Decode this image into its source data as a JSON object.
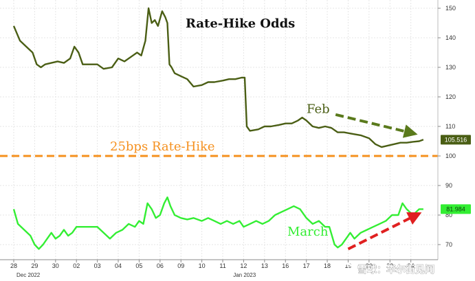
{
  "chart_data": {
    "type": "line",
    "title": "Rate-Hike Odds",
    "y_ticks": [
      70,
      80,
      90,
      100,
      110,
      120,
      130,
      140,
      150
    ],
    "ylim": [
      63,
      152
    ],
    "x_tick_labels": [
      "28",
      "29",
      "30",
      "02",
      "03",
      "04",
      "05",
      "06",
      "09",
      "10",
      "11",
      "12",
      "13",
      "16",
      "17",
      "18",
      "19",
      "20",
      "23",
      "24"
    ],
    "x_group_labels": [
      "Dec 2022",
      "Jan 2023"
    ],
    "xlim": [
      0,
      19.8
    ],
    "grid": true,
    "series": [
      {
        "name": "Feb",
        "color": "#4a5e14",
        "last_value": "105.516",
        "points": [
          [
            0,
            144
          ],
          [
            0.3,
            139
          ],
          [
            0.6,
            137
          ],
          [
            0.9,
            135
          ],
          [
            1.1,
            131
          ],
          [
            1.3,
            130
          ],
          [
            1.5,
            131
          ],
          [
            1.8,
            131.5
          ],
          [
            2.1,
            132
          ],
          [
            2.4,
            131.5
          ],
          [
            2.7,
            133
          ],
          [
            2.9,
            137
          ],
          [
            3.1,
            135
          ],
          [
            3.3,
            131
          ],
          [
            3.6,
            131
          ],
          [
            4.0,
            131
          ],
          [
            4.3,
            129.5
          ],
          [
            4.7,
            130
          ],
          [
            5.0,
            133
          ],
          [
            5.3,
            132
          ],
          [
            5.7,
            134
          ],
          [
            5.9,
            135
          ],
          [
            6.1,
            134
          ],
          [
            6.3,
            139
          ],
          [
            6.45,
            150
          ],
          [
            6.6,
            145
          ],
          [
            6.75,
            146
          ],
          [
            6.9,
            144
          ],
          [
            7.1,
            149
          ],
          [
            7.25,
            147
          ],
          [
            7.35,
            145
          ],
          [
            7.45,
            131
          ],
          [
            7.55,
            130
          ],
          [
            7.7,
            128
          ],
          [
            8.0,
            127
          ],
          [
            8.3,
            126
          ],
          [
            8.6,
            123.5
          ],
          [
            9.0,
            124
          ],
          [
            9.3,
            125
          ],
          [
            9.6,
            125
          ],
          [
            10.0,
            125.5
          ],
          [
            10.3,
            126
          ],
          [
            10.6,
            126
          ],
          [
            10.9,
            126.5
          ],
          [
            11.05,
            126.5
          ],
          [
            11.15,
            110
          ],
          [
            11.3,
            108.5
          ],
          [
            11.7,
            109
          ],
          [
            12.0,
            110
          ],
          [
            12.3,
            110
          ],
          [
            12.7,
            110.5
          ],
          [
            13.0,
            111
          ],
          [
            13.3,
            111
          ],
          [
            13.6,
            112
          ],
          [
            13.8,
            113
          ],
          [
            14.0,
            112
          ],
          [
            14.3,
            110
          ],
          [
            14.6,
            109.5
          ],
          [
            14.9,
            110
          ],
          [
            15.2,
            109.5
          ],
          [
            15.5,
            108
          ],
          [
            15.8,
            108
          ],
          [
            16.2,
            107.5
          ],
          [
            16.6,
            107
          ],
          [
            17.0,
            106
          ],
          [
            17.3,
            104
          ],
          [
            17.6,
            103
          ],
          [
            17.9,
            103.5
          ],
          [
            18.2,
            104
          ],
          [
            18.5,
            104.5
          ],
          [
            18.8,
            104.5
          ],
          [
            19.1,
            104.8
          ],
          [
            19.4,
            105
          ],
          [
            19.6,
            105.5
          ]
        ]
      },
      {
        "name": "March",
        "color": "#33ee33",
        "last_value": "81.984",
        "points": [
          [
            0,
            82
          ],
          [
            0.2,
            77
          ],
          [
            0.5,
            75
          ],
          [
            0.8,
            73
          ],
          [
            1.0,
            70
          ],
          [
            1.2,
            68.5
          ],
          [
            1.4,
            70
          ],
          [
            1.6,
            72
          ],
          [
            1.8,
            74
          ],
          [
            2.0,
            72
          ],
          [
            2.2,
            73
          ],
          [
            2.4,
            75
          ],
          [
            2.6,
            73
          ],
          [
            2.8,
            74
          ],
          [
            3.0,
            76
          ],
          [
            3.3,
            76
          ],
          [
            3.7,
            76
          ],
          [
            4.0,
            76
          ],
          [
            4.3,
            74
          ],
          [
            4.6,
            72
          ],
          [
            4.9,
            74
          ],
          [
            5.2,
            75
          ],
          [
            5.5,
            77
          ],
          [
            5.8,
            76
          ],
          [
            6.0,
            78
          ],
          [
            6.2,
            77
          ],
          [
            6.4,
            84
          ],
          [
            6.6,
            82
          ],
          [
            6.8,
            79
          ],
          [
            7.0,
            80
          ],
          [
            7.2,
            84
          ],
          [
            7.35,
            86
          ],
          [
            7.5,
            83
          ],
          [
            7.7,
            80
          ],
          [
            8.0,
            79
          ],
          [
            8.3,
            78.5
          ],
          [
            8.6,
            79
          ],
          [
            9.0,
            78
          ],
          [
            9.3,
            79
          ],
          [
            9.6,
            78
          ],
          [
            9.9,
            77
          ],
          [
            10.2,
            78
          ],
          [
            10.5,
            77
          ],
          [
            10.8,
            78
          ],
          [
            11.0,
            76
          ],
          [
            11.3,
            77
          ],
          [
            11.6,
            78
          ],
          [
            11.9,
            77
          ],
          [
            12.2,
            78
          ],
          [
            12.5,
            80
          ],
          [
            12.8,
            81
          ],
          [
            13.1,
            82
          ],
          [
            13.4,
            83
          ],
          [
            13.7,
            82
          ],
          [
            14.0,
            79
          ],
          [
            14.3,
            77
          ],
          [
            14.6,
            78
          ],
          [
            14.9,
            76
          ],
          [
            15.1,
            76
          ],
          [
            15.35,
            70
          ],
          [
            15.5,
            69
          ],
          [
            15.7,
            70
          ],
          [
            15.9,
            72
          ],
          [
            16.1,
            74
          ],
          [
            16.3,
            72
          ],
          [
            16.6,
            74
          ],
          [
            16.9,
            75
          ],
          [
            17.2,
            76
          ],
          [
            17.5,
            77
          ],
          [
            17.8,
            78
          ],
          [
            18.1,
            80
          ],
          [
            18.4,
            80
          ],
          [
            18.6,
            84
          ],
          [
            18.8,
            82
          ],
          [
            19.1,
            80
          ],
          [
            19.4,
            82
          ],
          [
            19.6,
            82
          ]
        ]
      }
    ],
    "reference_line": {
      "label": "25bps Rate-Hike",
      "value": 100,
      "color": "#f5901e"
    },
    "annotations": [
      {
        "text": "Feb",
        "color": "#4a5e14",
        "arrow": {
          "from": [
            15.4,
            114
          ],
          "to": [
            19.2,
            107.5
          ],
          "color": "#5a7a1c"
        }
      },
      {
        "text": "March",
        "color": "#33ee33",
        "arrow": {
          "from": [
            16.0,
            68.5
          ],
          "to": [
            19.4,
            80.5
          ],
          "color": "#e02020"
        }
      }
    ],
    "watermark": "雪球：华尔街见闻"
  }
}
